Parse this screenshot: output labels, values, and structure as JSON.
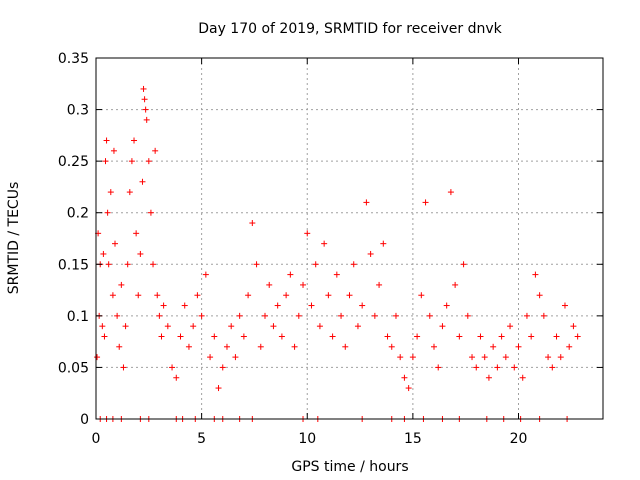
{
  "chart_data": {
    "type": "scatter",
    "title": "Day 170 of 2019, SRMTID for receiver dnvk",
    "xlabel": "GPS time / hours",
    "ylabel": "SRMTID / TECUs",
    "xlim": [
      0,
      24
    ],
    "ylim": [
      0,
      0.35
    ],
    "xticks": [
      0,
      5,
      10,
      15,
      20
    ],
    "xtick_labels": [
      "0",
      "5",
      "10",
      "15",
      "20"
    ],
    "yticks": [
      0,
      0.05,
      0.1,
      0.15,
      0.2,
      0.25,
      0.3,
      0.35
    ],
    "ytick_labels": [
      "0",
      "0.05",
      "0.1",
      "0.15",
      "0.2",
      "0.25",
      "0.3",
      "0.35"
    ],
    "grid": true,
    "marker": "+",
    "color": "#ff0000",
    "series": [
      {
        "name": "SRMTID",
        "points": [
          [
            0.05,
            0.06
          ],
          [
            0.1,
            0.18
          ],
          [
            0.15,
            0.1
          ],
          [
            0.2,
            0.15
          ],
          [
            0.3,
            0.09
          ],
          [
            0.35,
            0.16
          ],
          [
            0.4,
            0.08
          ],
          [
            0.45,
            0.25
          ],
          [
            0.5,
            0.27
          ],
          [
            0.55,
            0.2
          ],
          [
            0.6,
            0.15
          ],
          [
            0.7,
            0.22
          ],
          [
            0.8,
            0.12
          ],
          [
            0.85,
            0.26
          ],
          [
            0.9,
            0.17
          ],
          [
            1.0,
            0.1
          ],
          [
            1.1,
            0.07
          ],
          [
            1.2,
            0.13
          ],
          [
            1.3,
            0.05
          ],
          [
            1.4,
            0.09
          ],
          [
            1.5,
            0.15
          ],
          [
            1.6,
            0.22
          ],
          [
            1.7,
            0.25
          ],
          [
            1.8,
            0.27
          ],
          [
            1.9,
            0.18
          ],
          [
            2.0,
            0.12
          ],
          [
            2.1,
            0.16
          ],
          [
            2.2,
            0.23
          ],
          [
            2.25,
            0.32
          ],
          [
            2.3,
            0.31
          ],
          [
            2.35,
            0.3
          ],
          [
            2.4,
            0.29
          ],
          [
            2.5,
            0.25
          ],
          [
            2.6,
            0.2
          ],
          [
            2.7,
            0.15
          ],
          [
            2.8,
            0.26
          ],
          [
            2.9,
            0.12
          ],
          [
            3.0,
            0.1
          ],
          [
            3.1,
            0.08
          ],
          [
            3.2,
            0.11
          ],
          [
            3.4,
            0.09
          ],
          [
            3.6,
            0.05
          ],
          [
            3.8,
            0.04
          ],
          [
            4.0,
            0.08
          ],
          [
            4.2,
            0.11
          ],
          [
            4.4,
            0.07
          ],
          [
            4.6,
            0.09
          ],
          [
            4.8,
            0.12
          ],
          [
            5.0,
            0.1
          ],
          [
            5.2,
            0.14
          ],
          [
            5.4,
            0.06
          ],
          [
            5.6,
            0.08
          ],
          [
            5.8,
            0.03
          ],
          [
            6.0,
            0.05
          ],
          [
            6.2,
            0.07
          ],
          [
            6.4,
            0.09
          ],
          [
            6.6,
            0.06
          ],
          [
            6.8,
            0.1
          ],
          [
            7.0,
            0.08
          ],
          [
            7.2,
            0.12
          ],
          [
            7.4,
            0.19
          ],
          [
            7.6,
            0.15
          ],
          [
            7.8,
            0.07
          ],
          [
            8.0,
            0.1
          ],
          [
            8.2,
            0.13
          ],
          [
            8.4,
            0.09
          ],
          [
            8.6,
            0.11
          ],
          [
            8.8,
            0.08
          ],
          [
            9.0,
            0.12
          ],
          [
            9.2,
            0.14
          ],
          [
            9.4,
            0.07
          ],
          [
            9.6,
            0.1
          ],
          [
            9.8,
            0.13
          ],
          [
            10.0,
            0.18
          ],
          [
            10.2,
            0.11
          ],
          [
            10.4,
            0.15
          ],
          [
            10.6,
            0.09
          ],
          [
            10.8,
            0.17
          ],
          [
            11.0,
            0.12
          ],
          [
            11.2,
            0.08
          ],
          [
            11.4,
            0.14
          ],
          [
            11.6,
            0.1
          ],
          [
            11.8,
            0.07
          ],
          [
            12.0,
            0.12
          ],
          [
            12.2,
            0.15
          ],
          [
            12.4,
            0.09
          ],
          [
            12.6,
            0.11
          ],
          [
            12.8,
            0.21
          ],
          [
            13.0,
            0.16
          ],
          [
            13.2,
            0.1
          ],
          [
            13.4,
            0.13
          ],
          [
            13.6,
            0.17
          ],
          [
            13.8,
            0.08
          ],
          [
            14.0,
            0.07
          ],
          [
            14.2,
            0.1
          ],
          [
            14.4,
            0.06
          ],
          [
            14.6,
            0.04
          ],
          [
            14.8,
            0.03
          ],
          [
            15.0,
            0.06
          ],
          [
            15.2,
            0.08
          ],
          [
            15.4,
            0.12
          ],
          [
            15.6,
            0.21
          ],
          [
            15.8,
            0.1
          ],
          [
            16.0,
            0.07
          ],
          [
            16.2,
            0.05
          ],
          [
            16.4,
            0.09
          ],
          [
            16.6,
            0.11
          ],
          [
            16.8,
            0.22
          ],
          [
            17.0,
            0.13
          ],
          [
            17.2,
            0.08
          ],
          [
            17.4,
            0.15
          ],
          [
            17.6,
            0.1
          ],
          [
            17.8,
            0.06
          ],
          [
            18.0,
            0.05
          ],
          [
            18.2,
            0.08
          ],
          [
            18.4,
            0.06
          ],
          [
            18.6,
            0.04
          ],
          [
            18.8,
            0.07
          ],
          [
            19.0,
            0.05
          ],
          [
            19.2,
            0.08
          ],
          [
            19.4,
            0.06
          ],
          [
            19.6,
            0.09
          ],
          [
            19.8,
            0.05
          ],
          [
            20.0,
            0.07
          ],
          [
            20.2,
            0.04
          ],
          [
            20.4,
            0.1
          ],
          [
            20.6,
            0.08
          ],
          [
            20.8,
            0.14
          ],
          [
            21.0,
            0.12
          ],
          [
            21.2,
            0.1
          ],
          [
            21.4,
            0.06
          ],
          [
            21.6,
            0.05
          ],
          [
            21.8,
            0.08
          ],
          [
            22.0,
            0.06
          ],
          [
            22.2,
            0.11
          ],
          [
            22.4,
            0.07
          ],
          [
            22.6,
            0.09
          ],
          [
            22.8,
            0.08
          ],
          [
            0.2,
            0.0
          ],
          [
            0.5,
            0.0
          ],
          [
            0.8,
            0.0
          ],
          [
            1.2,
            0.0
          ],
          [
            2.1,
            0.0
          ],
          [
            2.5,
            0.0
          ],
          [
            3.8,
            0.0
          ],
          [
            4.1,
            0.0
          ],
          [
            4.7,
            0.0
          ],
          [
            5.6,
            0.0
          ],
          [
            6.0,
            0.0
          ],
          [
            6.8,
            0.0
          ],
          [
            7.4,
            0.0
          ],
          [
            9.8,
            0.0
          ],
          [
            10.5,
            0.0
          ],
          [
            12.6,
            0.0
          ],
          [
            14.0,
            0.0
          ],
          [
            14.6,
            0.0
          ],
          [
            15.5,
            0.0
          ],
          [
            16.4,
            0.0
          ],
          [
            17.2,
            0.0
          ],
          [
            18.5,
            0.0
          ],
          [
            19.3,
            0.0
          ],
          [
            20.1,
            0.0
          ],
          [
            21.0,
            0.0
          ],
          [
            22.3,
            0.0
          ]
        ]
      }
    ]
  }
}
